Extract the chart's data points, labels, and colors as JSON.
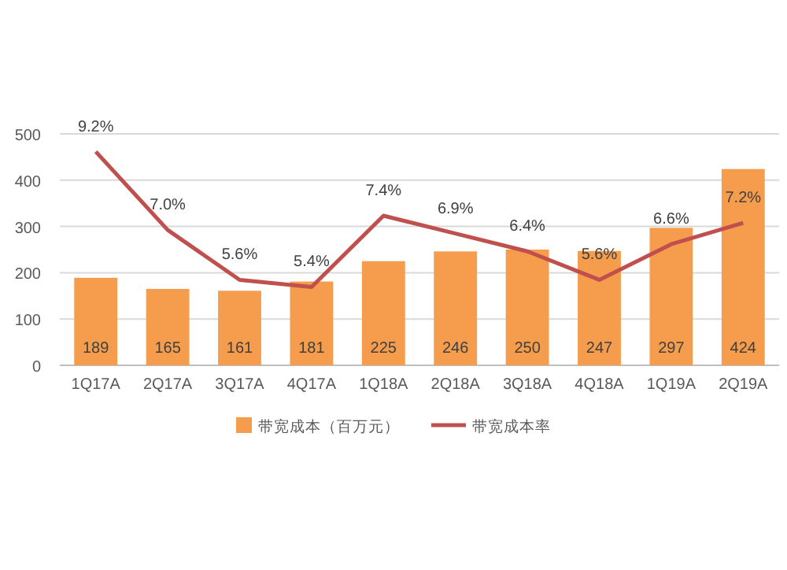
{
  "chart_data": {
    "type": "bar",
    "categories": [
      "1Q17A",
      "2Q17A",
      "3Q17A",
      "4Q17A",
      "1Q18A",
      "2Q18A",
      "3Q18A",
      "4Q18A",
      "1Q19A",
      "2Q19A"
    ],
    "series": [
      {
        "name": "带宽成本（百万元）",
        "color": "#f59d4c",
        "values": [
          189,
          165,
          161,
          181,
          225,
          246,
          250,
          247,
          297,
          424
        ]
      },
      {
        "name": "带宽成本率",
        "type": "line",
        "axis": "y2",
        "color": "#c0504d",
        "values": [
          9.2,
          7.0,
          5.6,
          5.4,
          7.4,
          6.9,
          6.4,
          5.6,
          6.6,
          7.2
        ],
        "value_labels": [
          "9.2%",
          "7.0%",
          "5.6%",
          "5.4%",
          "7.4%",
          "6.9%",
          "6.4%",
          "5.6%",
          "6.6%",
          "7.2%"
        ]
      }
    ],
    "ylim": [
      0,
      500
    ],
    "yticks": [
      0,
      100,
      200,
      300,
      400,
      500
    ],
    "y2lim": [
      3.2,
      9.7
    ],
    "data_labels": true,
    "grid": "y",
    "legend": "bottom",
    "marker": "none",
    "line_style": "solid"
  }
}
